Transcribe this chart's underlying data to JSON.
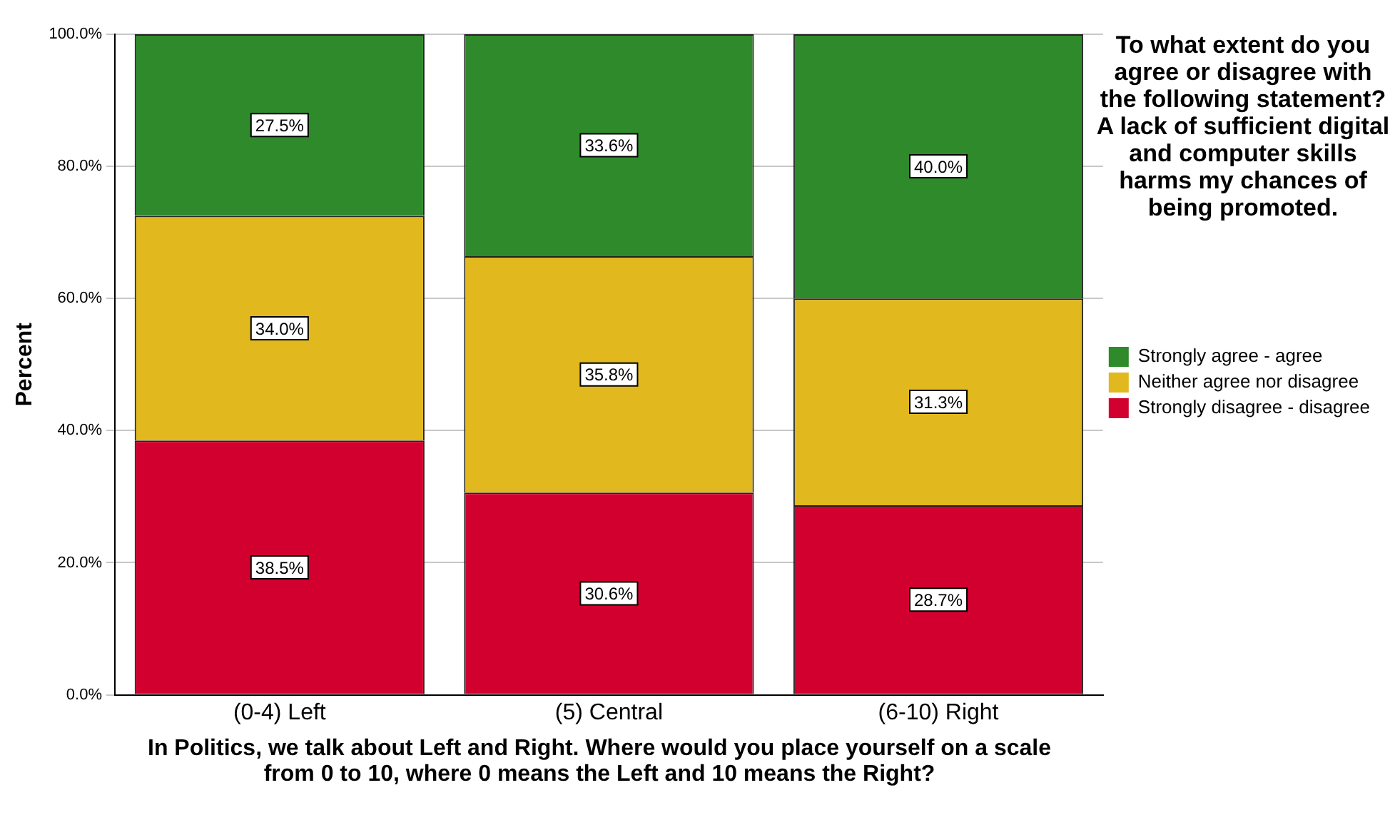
{
  "chart_data": {
    "type": "bar",
    "stacked": true,
    "xlabel": "In Politics, we talk about Left and Right. Where would you place yourself on a scale from 0 to 10, where 0 means the Left and 10 means the Right?",
    "ylabel": "Percent",
    "legend_title": "To what extent do you agree or disagree with the following statement? A lack of sufficient digital and computer skills harms my chances of being promoted.",
    "legend": "right",
    "grid": "y",
    "categories": [
      "(0-4) Left",
      "(5) Central",
      "(6-10) Right"
    ],
    "ylim": [
      0,
      100
    ],
    "yticks": [
      {
        "value": 0,
        "label": "0.0%"
      },
      {
        "value": 20,
        "label": "20.0%"
      },
      {
        "value": 40,
        "label": "40.0%"
      },
      {
        "value": 60,
        "label": "60.0%"
      },
      {
        "value": 80,
        "label": "80.0%"
      },
      {
        "value": 100,
        "label": "100.0%"
      }
    ],
    "series": [
      {
        "name": "Strongly disagree - disagree",
        "color": "#d2002e",
        "values": [
          38.5,
          30.6,
          28.7
        ],
        "value_labels": [
          "38.5%",
          "30.6%",
          "28.7%"
        ]
      },
      {
        "name": "Neither agree nor disagree",
        "color": "#e1b81e",
        "values": [
          34.0,
          35.8,
          31.3
        ],
        "value_labels": [
          "34.0%",
          "35.8%",
          "31.3%"
        ]
      },
      {
        "name": "Strongly agree - agree",
        "color": "#2e8a2a",
        "values": [
          27.5,
          33.6,
          40.0
        ],
        "value_labels": [
          "27.5%",
          "33.6%",
          "40.0%"
        ]
      }
    ]
  }
}
